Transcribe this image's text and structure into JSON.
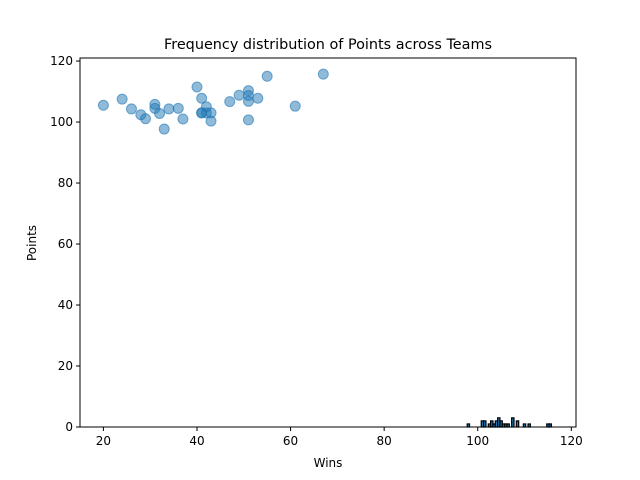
{
  "chart_data": {
    "type": "scatter",
    "title": "Frequency distribution of Points across Teams",
    "xlabel": "Wins",
    "ylabel": "Points",
    "xlim": [
      15,
      121
    ],
    "ylim": [
      0,
      121
    ],
    "xticks": [
      20,
      40,
      60,
      80,
      100,
      120
    ],
    "yticks": [
      0,
      20,
      40,
      60,
      80,
      100,
      120
    ],
    "grid": false,
    "colors": {
      "points": "#1f77b4",
      "bars": "#1f77b4",
      "bar_edge": "#000000"
    },
    "series": [
      {
        "type": "scatter",
        "x": [
          20,
          24,
          26,
          28,
          29,
          31,
          31,
          32,
          33,
          34,
          36,
          37,
          40,
          41,
          41,
          41,
          42,
          42,
          43,
          43,
          47,
          49,
          51,
          51,
          51,
          51,
          53,
          55,
          61,
          67
        ],
        "y": [
          105.5,
          107.5,
          104.3,
          102.4,
          101.1,
          105.8,
          104.5,
          102.8,
          97.7,
          104.3,
          104.5,
          101.0,
          111.5,
          107.8,
          103.0,
          103.0,
          105.0,
          103.0,
          103.0,
          100.3,
          106.7,
          108.8,
          110.3,
          108.7,
          106.8,
          100.7,
          107.8,
          115.0,
          105.2,
          115.7
        ]
      },
      {
        "type": "histogram",
        "bins": [
          {
            "x": 98,
            "count": 1
          },
          {
            "x": 101,
            "count": 2
          },
          {
            "x": 101.5,
            "count": 2
          },
          {
            "x": 102.5,
            "count": 1
          },
          {
            "x": 103,
            "count": 2
          },
          {
            "x": 103.5,
            "count": 1
          },
          {
            "x": 104,
            "count": 2
          },
          {
            "x": 104.5,
            "count": 3
          },
          {
            "x": 105,
            "count": 2
          },
          {
            "x": 105.5,
            "count": 1
          },
          {
            "x": 106,
            "count": 1
          },
          {
            "x": 106.5,
            "count": 1
          },
          {
            "x": 107.5,
            "count": 3
          },
          {
            "x": 108.5,
            "count": 2
          },
          {
            "x": 110,
            "count": 1
          },
          {
            "x": 111,
            "count": 1
          },
          {
            "x": 115,
            "count": 1
          },
          {
            "x": 115.5,
            "count": 1
          }
        ]
      }
    ]
  }
}
